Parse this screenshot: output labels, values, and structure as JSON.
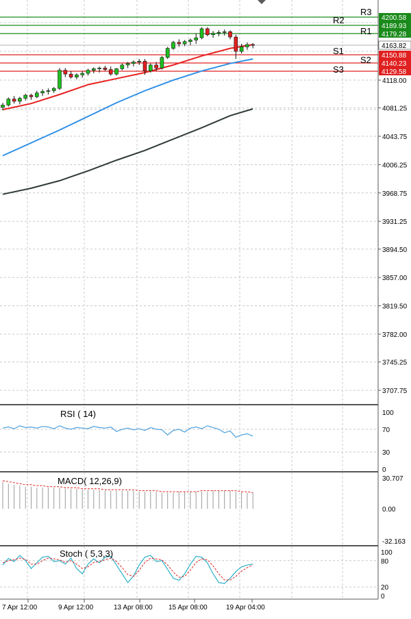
{
  "chart_data": {
    "type": "candlestick",
    "instrument_timeframe": "",
    "y_ticks": [
      "4118.00",
      "4081.25",
      "4043.75",
      "4006.25",
      "3968.75",
      "3931.25",
      "3894.50",
      "3857.00",
      "3819.50",
      "3782.00",
      "3745.25",
      "3707.75"
    ],
    "current_price": 4163.82,
    "current_price_label": "4163.82",
    "resistance_levels": [
      {
        "name": "R3",
        "value": 4200.58,
        "label": "4200.58"
      },
      {
        "name": "R2",
        "value": 4189.93,
        "label": "4189.93"
      },
      {
        "name": "R1",
        "value": 4179.28,
        "label": "4179.28"
      }
    ],
    "support_levels": [
      {
        "name": "S1",
        "value": 4150.88,
        "label": "4150.88"
      },
      {
        "name": "S2",
        "value": 4140.23,
        "label": "4140.23"
      },
      {
        "name": "S3",
        "value": 4129.58,
        "label": "4129.58"
      }
    ],
    "x_ticks": [
      "7 Apr 12:00",
      "9 Apr 12:00",
      "13 Apr 08:00",
      "15 Apr 08:00",
      "19 Apr 04:00"
    ],
    "candles": [
      [
        4082,
        4088,
        4078,
        4085
      ],
      [
        4085,
        4095,
        4083,
        4093
      ],
      [
        4093,
        4097,
        4087,
        4090
      ],
      [
        4090,
        4096,
        4086,
        4094
      ],
      [
        4094,
        4100,
        4091,
        4098
      ],
      [
        4098,
        4100,
        4092,
        4096
      ],
      [
        4096,
        4104,
        4094,
        4101
      ],
      [
        4101,
        4106,
        4097,
        4103
      ],
      [
        4103,
        4107,
        4099,
        4104
      ],
      [
        4104,
        4109,
        4101,
        4107
      ],
      [
        4107,
        4134,
        4105,
        4131
      ],
      [
        4131,
        4134,
        4122,
        4126
      ],
      [
        4126,
        4130,
        4120,
        4122
      ],
      [
        4122,
        4127,
        4119,
        4125
      ],
      [
        4125,
        4130,
        4121,
        4127
      ],
      [
        4127,
        4133,
        4124,
        4131
      ],
      [
        4131,
        4135,
        4127,
        4133
      ],
      [
        4133,
        4136,
        4128,
        4134
      ],
      [
        4134,
        4137,
        4130,
        4132
      ],
      [
        4132,
        4136,
        4124,
        4126
      ],
      [
        4126,
        4134,
        4124,
        4133
      ],
      [
        4133,
        4140,
        4131,
        4138
      ],
      [
        4138,
        4142,
        4134,
        4140
      ],
      [
        4140,
        4144,
        4136,
        4142
      ],
      [
        4142,
        4146,
        4138,
        4143
      ],
      [
        4143,
        4146,
        4125,
        4130
      ],
      [
        4130,
        4140,
        4128,
        4138
      ],
      [
        4138,
        4142,
        4130,
        4134
      ],
      [
        4134,
        4150,
        4132,
        4148
      ],
      [
        4148,
        4162,
        4146,
        4160
      ],
      [
        4160,
        4170,
        4158,
        4168
      ],
      [
        4168,
        4172,
        4162,
        4166
      ],
      [
        4166,
        4171,
        4163,
        4169
      ],
      [
        4169,
        4173,
        4164,
        4171
      ],
      [
        4171,
        4180,
        4166,
        4174
      ],
      [
        4174,
        4188,
        4172,
        4186
      ],
      [
        4186,
        4188,
        4176,
        4178
      ],
      [
        4178,
        4183,
        4174,
        4180
      ],
      [
        4180,
        4184,
        4176,
        4181
      ],
      [
        4181,
        4185,
        4177,
        4182
      ],
      [
        4182,
        4184,
        4172,
        4175
      ],
      [
        4175,
        4178,
        4146,
        4156
      ],
      [
        4156,
        4166,
        4153,
        4162
      ],
      [
        4162,
        4168,
        4158,
        4165
      ],
      [
        4165,
        4167,
        4160,
        4164
      ]
    ],
    "moving_averages": [
      {
        "color": "#e82020",
        "values": [
          [
            0,
            4079
          ],
          [
            5,
            4087
          ],
          [
            10,
            4099
          ],
          [
            15,
            4112
          ],
          [
            20,
            4120
          ],
          [
            25,
            4128
          ],
          [
            30,
            4138
          ],
          [
            35,
            4150
          ],
          [
            40,
            4160
          ],
          [
            44,
            4165
          ]
        ]
      },
      {
        "color": "#2f8fe8",
        "values": [
          [
            0,
            4018
          ],
          [
            5,
            4035
          ],
          [
            10,
            4052
          ],
          [
            15,
            4070
          ],
          [
            20,
            4088
          ],
          [
            25,
            4104
          ],
          [
            30,
            4118
          ],
          [
            35,
            4130
          ],
          [
            40,
            4140
          ],
          [
            44,
            4146
          ]
        ]
      },
      {
        "color": "#2f3a3a",
        "values": [
          [
            0,
            3967
          ],
          [
            5,
            3975
          ],
          [
            10,
            3985
          ],
          [
            15,
            3998
          ],
          [
            20,
            4012
          ],
          [
            25,
            4025
          ],
          [
            30,
            4040
          ],
          [
            35,
            4055
          ],
          [
            40,
            4071
          ],
          [
            44,
            4080
          ]
        ]
      }
    ],
    "rsi": {
      "label": "RSI ( 14)",
      "ticks": [
        "100",
        "70",
        "30",
        "0"
      ],
      "values": [
        72,
        74,
        71,
        76,
        73,
        74,
        72,
        75,
        74,
        71,
        76,
        72,
        70,
        73,
        72,
        71,
        75,
        73,
        72,
        74,
        66,
        70,
        72,
        69,
        71,
        68,
        73,
        70,
        69,
        60,
        68,
        70,
        65,
        72,
        74,
        71,
        76,
        73,
        70,
        64,
        67,
        56,
        60,
        62,
        58
      ]
    },
    "macd": {
      "label": "MACD( 12,26,9)",
      "ticks": [
        "30.707",
        "0.00",
        "-32.163"
      ],
      "histogram": [
        27,
        25,
        24,
        23,
        22,
        22,
        21,
        21,
        21,
        21,
        21,
        20,
        20,
        20,
        19,
        19,
        19,
        19,
        18,
        18,
        18,
        18,
        18,
        18,
        17,
        17,
        17,
        17,
        16,
        16,
        16,
        17,
        17,
        17,
        17,
        17,
        17,
        18,
        18,
        18,
        18,
        17,
        17,
        16,
        16
      ],
      "signal": [
        28,
        27,
        26,
        25,
        24,
        24,
        23,
        23,
        22,
        22,
        22,
        21,
        21,
        21,
        20,
        20,
        20,
        20,
        19,
        19,
        19,
        19,
        19,
        19,
        18,
        18,
        18,
        18,
        17,
        17,
        17,
        17,
        17,
        17,
        17,
        18,
        18,
        18,
        18,
        18,
        18,
        18,
        17,
        17,
        16
      ]
    },
    "stoch": {
      "label": "Stoch ( 5,3,3)",
      "ticks": [
        "100",
        "80",
        "20",
        "0"
      ],
      "k": [
        70,
        85,
        78,
        92,
        80,
        62,
        75,
        88,
        90,
        78,
        80,
        72,
        86,
        62,
        50,
        72,
        84,
        75,
        88,
        90,
        70,
        50,
        30,
        45,
        70,
        88,
        92,
        78,
        80,
        60,
        40,
        35,
        50,
        72,
        90,
        88,
        75,
        50,
        30,
        28,
        40,
        55,
        66,
        70,
        72
      ],
      "d": [
        75,
        80,
        82,
        86,
        83,
        72,
        72,
        80,
        86,
        84,
        82,
        76,
        80,
        72,
        62,
        66,
        76,
        78,
        82,
        86,
        78,
        64,
        48,
        44,
        58,
        76,
        86,
        84,
        82,
        70,
        54,
        42,
        44,
        58,
        76,
        84,
        82,
        68,
        50,
        36,
        36,
        44,
        56,
        64,
        70
      ]
    }
  }
}
